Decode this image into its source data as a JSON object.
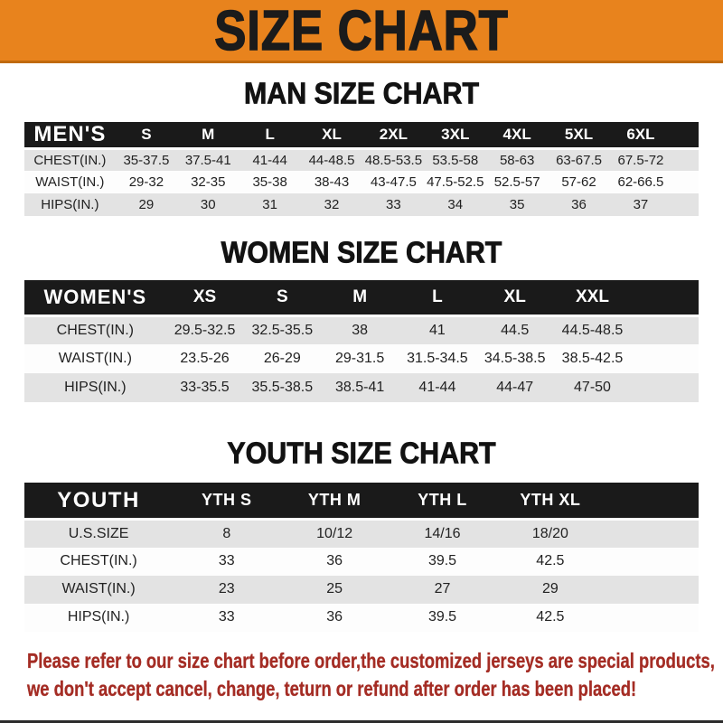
{
  "banner": {
    "title": "SIZE CHART",
    "bg_color": "#E8831D",
    "text_color": "#1B1B1B"
  },
  "colors": {
    "header_bar": "#1A1A1A",
    "row_gray": "#E3E3E3",
    "row_white": "#FDFDFD",
    "disclaimer_red": "#A42C24"
  },
  "sections": [
    {
      "heading": "MAN SIZE CHART",
      "table": {
        "header": {
          "label": "MEN'S",
          "columns": [
            "S",
            "M",
            "L",
            "XL",
            "2XL",
            "3XL",
            "4XL",
            "5XL",
            "6XL"
          ]
        },
        "rows": [
          {
            "label": "CHEST(IN.)",
            "values": [
              "35-37.5",
              "37.5-41",
              "41-44",
              "44-48.5",
              "48.5-53.5",
              "53.5-58",
              "58-63",
              "63-67.5",
              "67.5-72"
            ]
          },
          {
            "label": "WAIST(IN.)",
            "values": [
              "29-32",
              "32-35",
              "35-38",
              "38-43",
              "43-47.5",
              "47.5-52.5",
              "52.5-57",
              "57-62",
              "62-66.5"
            ]
          },
          {
            "label": "HIPS(IN.)",
            "values": [
              "29",
              "30",
              "31",
              "32",
              "33",
              "34",
              "35",
              "36",
              "37"
            ]
          }
        ]
      }
    },
    {
      "heading": "WOMEN SIZE CHART",
      "table": {
        "header": {
          "label": "WOMEN'S",
          "columns": [
            "XS",
            "S",
            "M",
            "L",
            "XL",
            "XXL"
          ]
        },
        "rows": [
          {
            "label": "CHEST(IN.)",
            "values": [
              "29.5-32.5",
              "32.5-35.5",
              "38",
              "41",
              "44.5",
              "44.5-48.5"
            ]
          },
          {
            "label": "WAIST(IN.)",
            "values": [
              "23.5-26",
              "26-29",
              "29-31.5",
              "31.5-34.5",
              "34.5-38.5",
              "38.5-42.5"
            ]
          },
          {
            "label": "HIPS(IN.)",
            "values": [
              "33-35.5",
              "35.5-38.5",
              "38.5-41",
              "41-44",
              "44-47",
              "47-50"
            ]
          }
        ]
      }
    },
    {
      "heading": "YOUTH SIZE CHART",
      "table": {
        "header": {
          "label": "YOUTH",
          "columns": [
            "YTH S",
            "YTH M",
            "YTH L",
            "YTH XL"
          ]
        },
        "rows": [
          {
            "label": "U.S.SIZE",
            "values": [
              "8",
              "10/12",
              "14/16",
              "18/20"
            ]
          },
          {
            "label": "CHEST(IN.)",
            "values": [
              "33",
              "36",
              "39.5",
              "42.5"
            ]
          },
          {
            "label": "WAIST(IN.)",
            "values": [
              "23",
              "25",
              "27",
              "29"
            ]
          },
          {
            "label": "HIPS(IN.)",
            "values": [
              "33",
              "36",
              "39.5",
              "42.5"
            ]
          }
        ]
      }
    }
  ],
  "disclaimer": {
    "line1": "Please refer to our size chart before order,the customized jerseys are special products,",
    "line2": "we don't accept cancel, change, teturn or refund after order has been placed!"
  }
}
